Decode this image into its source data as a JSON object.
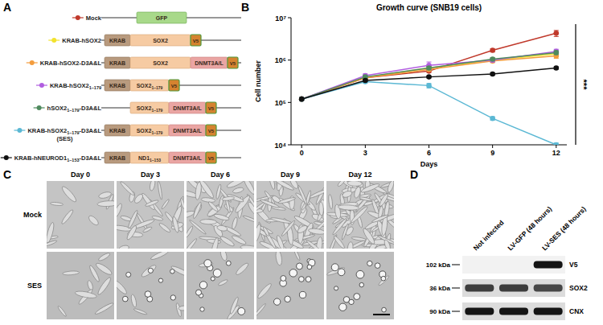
{
  "panel_a": {
    "label": "A",
    "constructs": [
      {
        "name": {
          "main": "Mock"
        },
        "segments": [
          {
            "kind": "gfp",
            "text": "GFP"
          }
        ]
      },
      {
        "name": {
          "main": "KRAB-hSOX2"
        },
        "segments": [
          {
            "kind": "krab",
            "text": "KRAB"
          },
          {
            "kind": "sox2",
            "text": "SOX2"
          },
          {
            "kind": "v5",
            "text": "V5"
          }
        ]
      },
      {
        "name": {
          "main": "KRAB-hSOX2-D3A&L"
        },
        "segments": [
          {
            "kind": "krab",
            "text": "KRAB"
          },
          {
            "kind": "sox2",
            "text": "SOX2"
          },
          {
            "kind": "dnmt",
            "text": "DNMT3A/L"
          },
          {
            "kind": "v5",
            "text": "V5"
          }
        ]
      },
      {
        "name": {
          "main": "KRAB-hSOX2",
          "sub": "1–179"
        },
        "segments": [
          {
            "kind": "krab",
            "text": "KRAB"
          },
          {
            "kind": "sox2_short",
            "text": "SOX2",
            "sub": "1–179"
          },
          {
            "kind": "v5",
            "text": "V5"
          }
        ]
      },
      {
        "name": {
          "main": "hSOX2",
          "sub": "1–179",
          "rest": "-D3A&L"
        },
        "segments": [
          {
            "kind": "sox2_short",
            "text": "SOX2",
            "sub": "1–179"
          },
          {
            "kind": "dnmt",
            "text": "DNMT3A/L"
          },
          {
            "kind": "v5",
            "text": "V5"
          }
        ]
      },
      {
        "name": {
          "main": "KRAB-hSOX2",
          "sub": "1–179",
          "rest": "-D3A&L",
          "line2": "(SES)"
        },
        "segments": [
          {
            "kind": "krab",
            "text": "KRAB"
          },
          {
            "kind": "sox2_short",
            "text": "SOX2",
            "sub": "1–179"
          },
          {
            "kind": "dnmt",
            "text": "DNMT3A/L"
          },
          {
            "kind": "v5",
            "text": "V5"
          }
        ]
      },
      {
        "name": {
          "main": "KRAB-hNEUROD1",
          "sub": "1–153",
          "rest": "-D3A&L"
        },
        "segments": [
          {
            "kind": "krab",
            "text": "KRAB"
          },
          {
            "kind": "nd1",
            "text": "ND1",
            "sub": "1–153"
          },
          {
            "kind": "dnmt",
            "text": "DNMT3A/L"
          },
          {
            "kind": "v5",
            "text": "V5"
          }
        ]
      }
    ]
  },
  "chart_data": {
    "type": "line",
    "label": "B",
    "title": "Growth curve (SNB19 cells)",
    "xlabel": "Days",
    "ylabel": "Cell number",
    "x": [
      0,
      3,
      6,
      9,
      12
    ],
    "xlim": [
      -0.5,
      12.5
    ],
    "xticks": [
      0,
      3,
      6,
      9,
      12
    ],
    "ylim": [
      10000,
      10000000
    ],
    "yticks": [
      {
        "value": 10000,
        "label": "10⁴"
      },
      {
        "value": 100000,
        "label": "10⁵"
      },
      {
        "value": 1000000,
        "label": "10⁶"
      },
      {
        "value": 10000000,
        "label": "10⁷"
      }
    ],
    "log": "y",
    "marker": "circle",
    "series": [
      {
        "color": "#c0392b",
        "values": [
          120000,
          380000,
          550000,
          1700000,
          4300000
        ],
        "errors": [
          5000,
          30000,
          40000,
          150000,
          700000
        ]
      },
      {
        "color": "#f2e22e",
        "values": [
          120000,
          390000,
          650000,
          1000000,
          1400000
        ],
        "errors": [
          5000,
          30000,
          60000,
          80000,
          150000
        ]
      },
      {
        "color": "#f39c3d",
        "values": [
          120000,
          380000,
          600000,
          950000,
          1250000
        ],
        "errors": [
          5000,
          30000,
          60000,
          80000,
          150000
        ]
      },
      {
        "color": "#b15de0",
        "values": [
          120000,
          430000,
          750000,
          1000000,
          1600000
        ],
        "errors": [
          5000,
          40000,
          150000,
          100000,
          200000
        ]
      },
      {
        "color": "#4f8a5e",
        "values": [
          120000,
          400000,
          650000,
          1050000,
          1500000
        ],
        "errors": [
          5000,
          30000,
          60000,
          90000,
          150000
        ]
      },
      {
        "color": "#5bb8d4",
        "values": [
          120000,
          310000,
          250000,
          42000,
          10000
        ],
        "errors": [
          5000,
          20000,
          30000,
          4000,
          1000
        ]
      },
      {
        "color": "#111111",
        "values": [
          120000,
          330000,
          400000,
          470000,
          650000
        ],
        "errors": [
          5000,
          20000,
          20000,
          30000,
          40000
        ]
      }
    ],
    "annotations": [
      {
        "text": "***"
      }
    ]
  },
  "panel_c": {
    "label": "C",
    "columns": [
      "Day 0",
      "Day 3",
      "Day 6",
      "Day 9",
      "Day 12"
    ],
    "rows": [
      "Mock",
      "SES"
    ]
  },
  "panel_d": {
    "label": "D",
    "lanes": [
      "Not infected",
      "LV-GFP (48 hours)",
      "LV-SES (48 hours)"
    ],
    "blots": [
      {
        "size_label": "102 kDa",
        "target": "V5",
        "bands": [
          0,
          0,
          1
        ]
      },
      {
        "size_label": "36 kDa",
        "target": "SOX2",
        "bands": [
          0.8,
          0.8,
          0.75
        ]
      },
      {
        "size_label": "90 kDa",
        "target": "CNX",
        "bands": [
          1,
          1,
          1
        ]
      }
    ]
  }
}
